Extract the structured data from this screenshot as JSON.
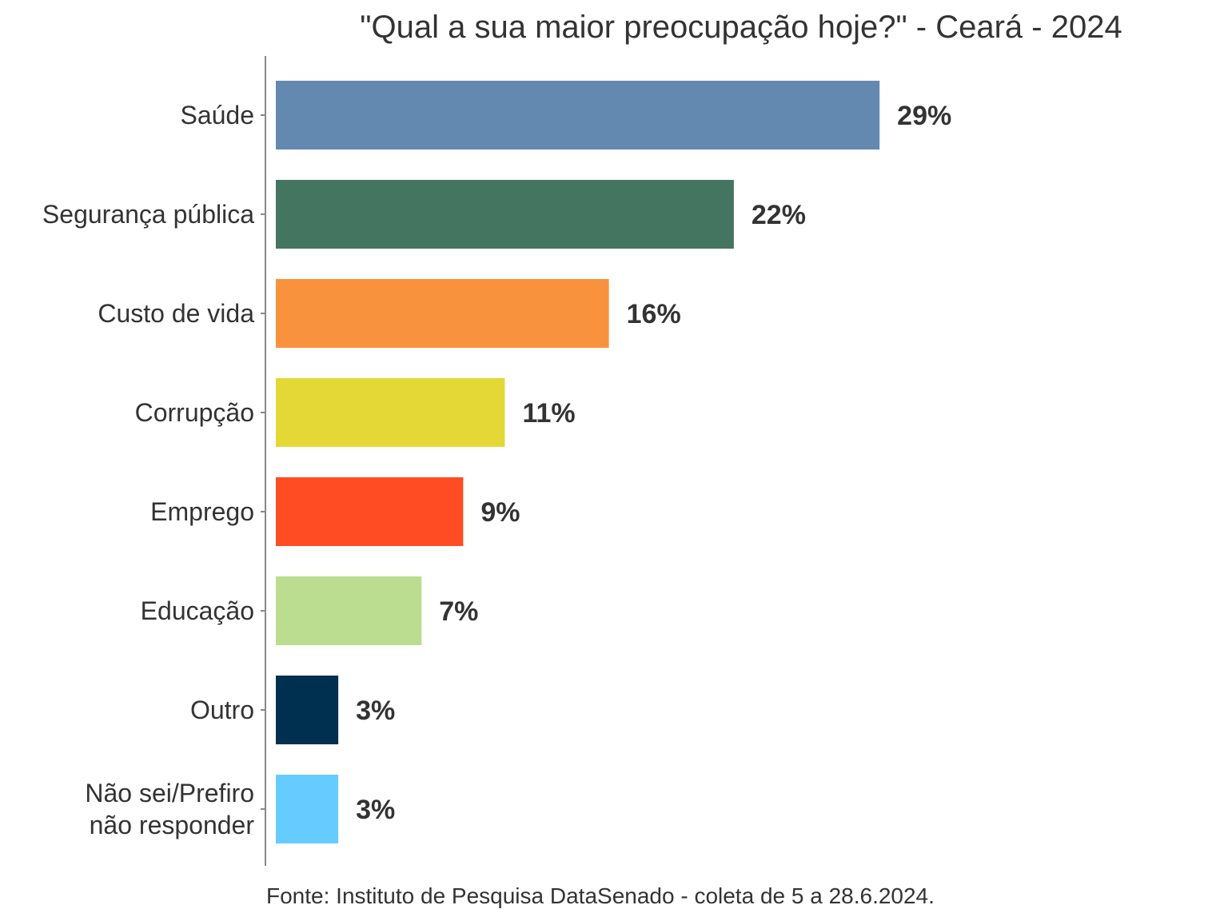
{
  "chart_data": {
    "type": "bar",
    "orientation": "horizontal",
    "title": "\"Qual a sua maior preocupação hoje?\" - Ceará - 2024",
    "categories": [
      "Saúde",
      "Segurança pública",
      "Custo de vida",
      "Corrupção",
      "Emprego",
      "Educação",
      "Outro",
      "Não sei/Prefiro não responder"
    ],
    "category_lines": [
      [
        "Saúde"
      ],
      [
        "Segurança pública"
      ],
      [
        "Custo de vida"
      ],
      [
        "Corrupção"
      ],
      [
        "Emprego"
      ],
      [
        "Educação"
      ],
      [
        "Outro"
      ],
      [
        "Não sei/Prefiro",
        "não responder"
      ]
    ],
    "values": [
      29,
      22,
      16,
      11,
      9,
      7,
      3,
      3
    ],
    "value_labels": [
      "29%",
      "22%",
      "16%",
      "11%",
      "9%",
      "7%",
      "3%",
      "3%"
    ],
    "colors": [
      "#6389B0",
      "#447561",
      "#F9923D",
      "#E4D836",
      "#FF4C22",
      "#BADD90",
      "#003050",
      "#66CCFF"
    ],
    "xlim": [
      0,
      40
    ],
    "grid": false,
    "legend": "none",
    "source": "Fonte: Instituto de Pesquisa DataSenado - coleta de 5 a 28.6.2024."
  }
}
